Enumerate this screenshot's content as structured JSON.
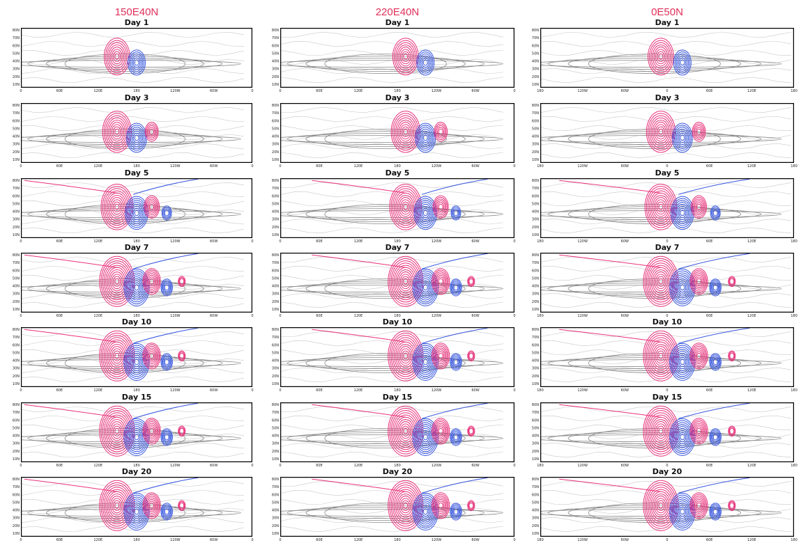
{
  "columns": [
    {
      "title": "150E40N",
      "xticks": [
        "0",
        "60E",
        "120E",
        "180",
        "120W",
        "60W",
        "0"
      ]
    },
    {
      "title": "220E40N",
      "xticks": [
        "0",
        "60E",
        "120E",
        "180",
        "120W",
        "60W",
        "0"
      ]
    },
    {
      "title": "0E50N",
      "xticks": [
        "180",
        "120W",
        "60W",
        "0",
        "60E",
        "120E",
        "180"
      ]
    }
  ],
  "days": [
    "Day 1",
    "Day 3",
    "Day 5",
    "Day 7",
    "Day 10",
    "Day 15",
    "Day 20"
  ],
  "yticks": [
    "80N",
    "70N",
    "60N",
    "50N",
    "40N",
    "30N",
    "20N",
    "10N"
  ]
}
